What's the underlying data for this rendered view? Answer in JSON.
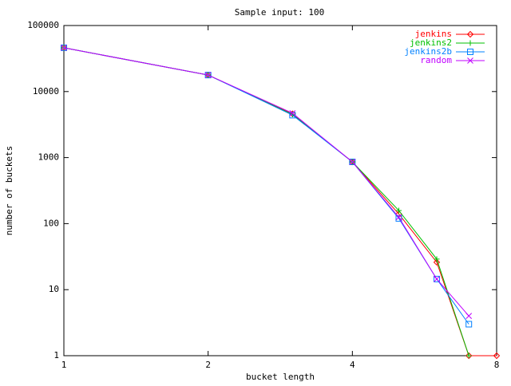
{
  "chart_data": {
    "type": "line",
    "title": "Sample input: 100",
    "xlabel": "bucket length",
    "ylabel": "number of buckets",
    "x": [
      1,
      2,
      3,
      4,
      5,
      6,
      7,
      8
    ],
    "series": [
      {
        "name": "jenkins",
        "color": "#ff0000",
        "marker": "diamond",
        "values": [
          46000,
          17800,
          4600,
          860,
          140,
          26,
          1,
          1
        ]
      },
      {
        "name": "jenkins2",
        "color": "#00c000",
        "marker": "plus",
        "values": [
          46000,
          17800,
          4500,
          860,
          158,
          29,
          1,
          null
        ]
      },
      {
        "name": "jenkins2b",
        "color": "#0080ff",
        "marker": "square",
        "values": [
          46000,
          17800,
          4400,
          860,
          120,
          14.5,
          3,
          null
        ]
      },
      {
        "name": "random",
        "color": "#c000ff",
        "marker": "cross",
        "values": [
          46000,
          17800,
          4700,
          860,
          125,
          14.5,
          4,
          null
        ]
      }
    ],
    "xlim": [
      1,
      8
    ],
    "xticks": [
      1,
      2,
      4,
      8
    ],
    "xlog_base": 2,
    "ylim": [
      1,
      100000
    ],
    "yticks": [
      1,
      10,
      100,
      1000,
      10000,
      100000
    ],
    "ylog_base": 10,
    "legend": "top-right"
  }
}
